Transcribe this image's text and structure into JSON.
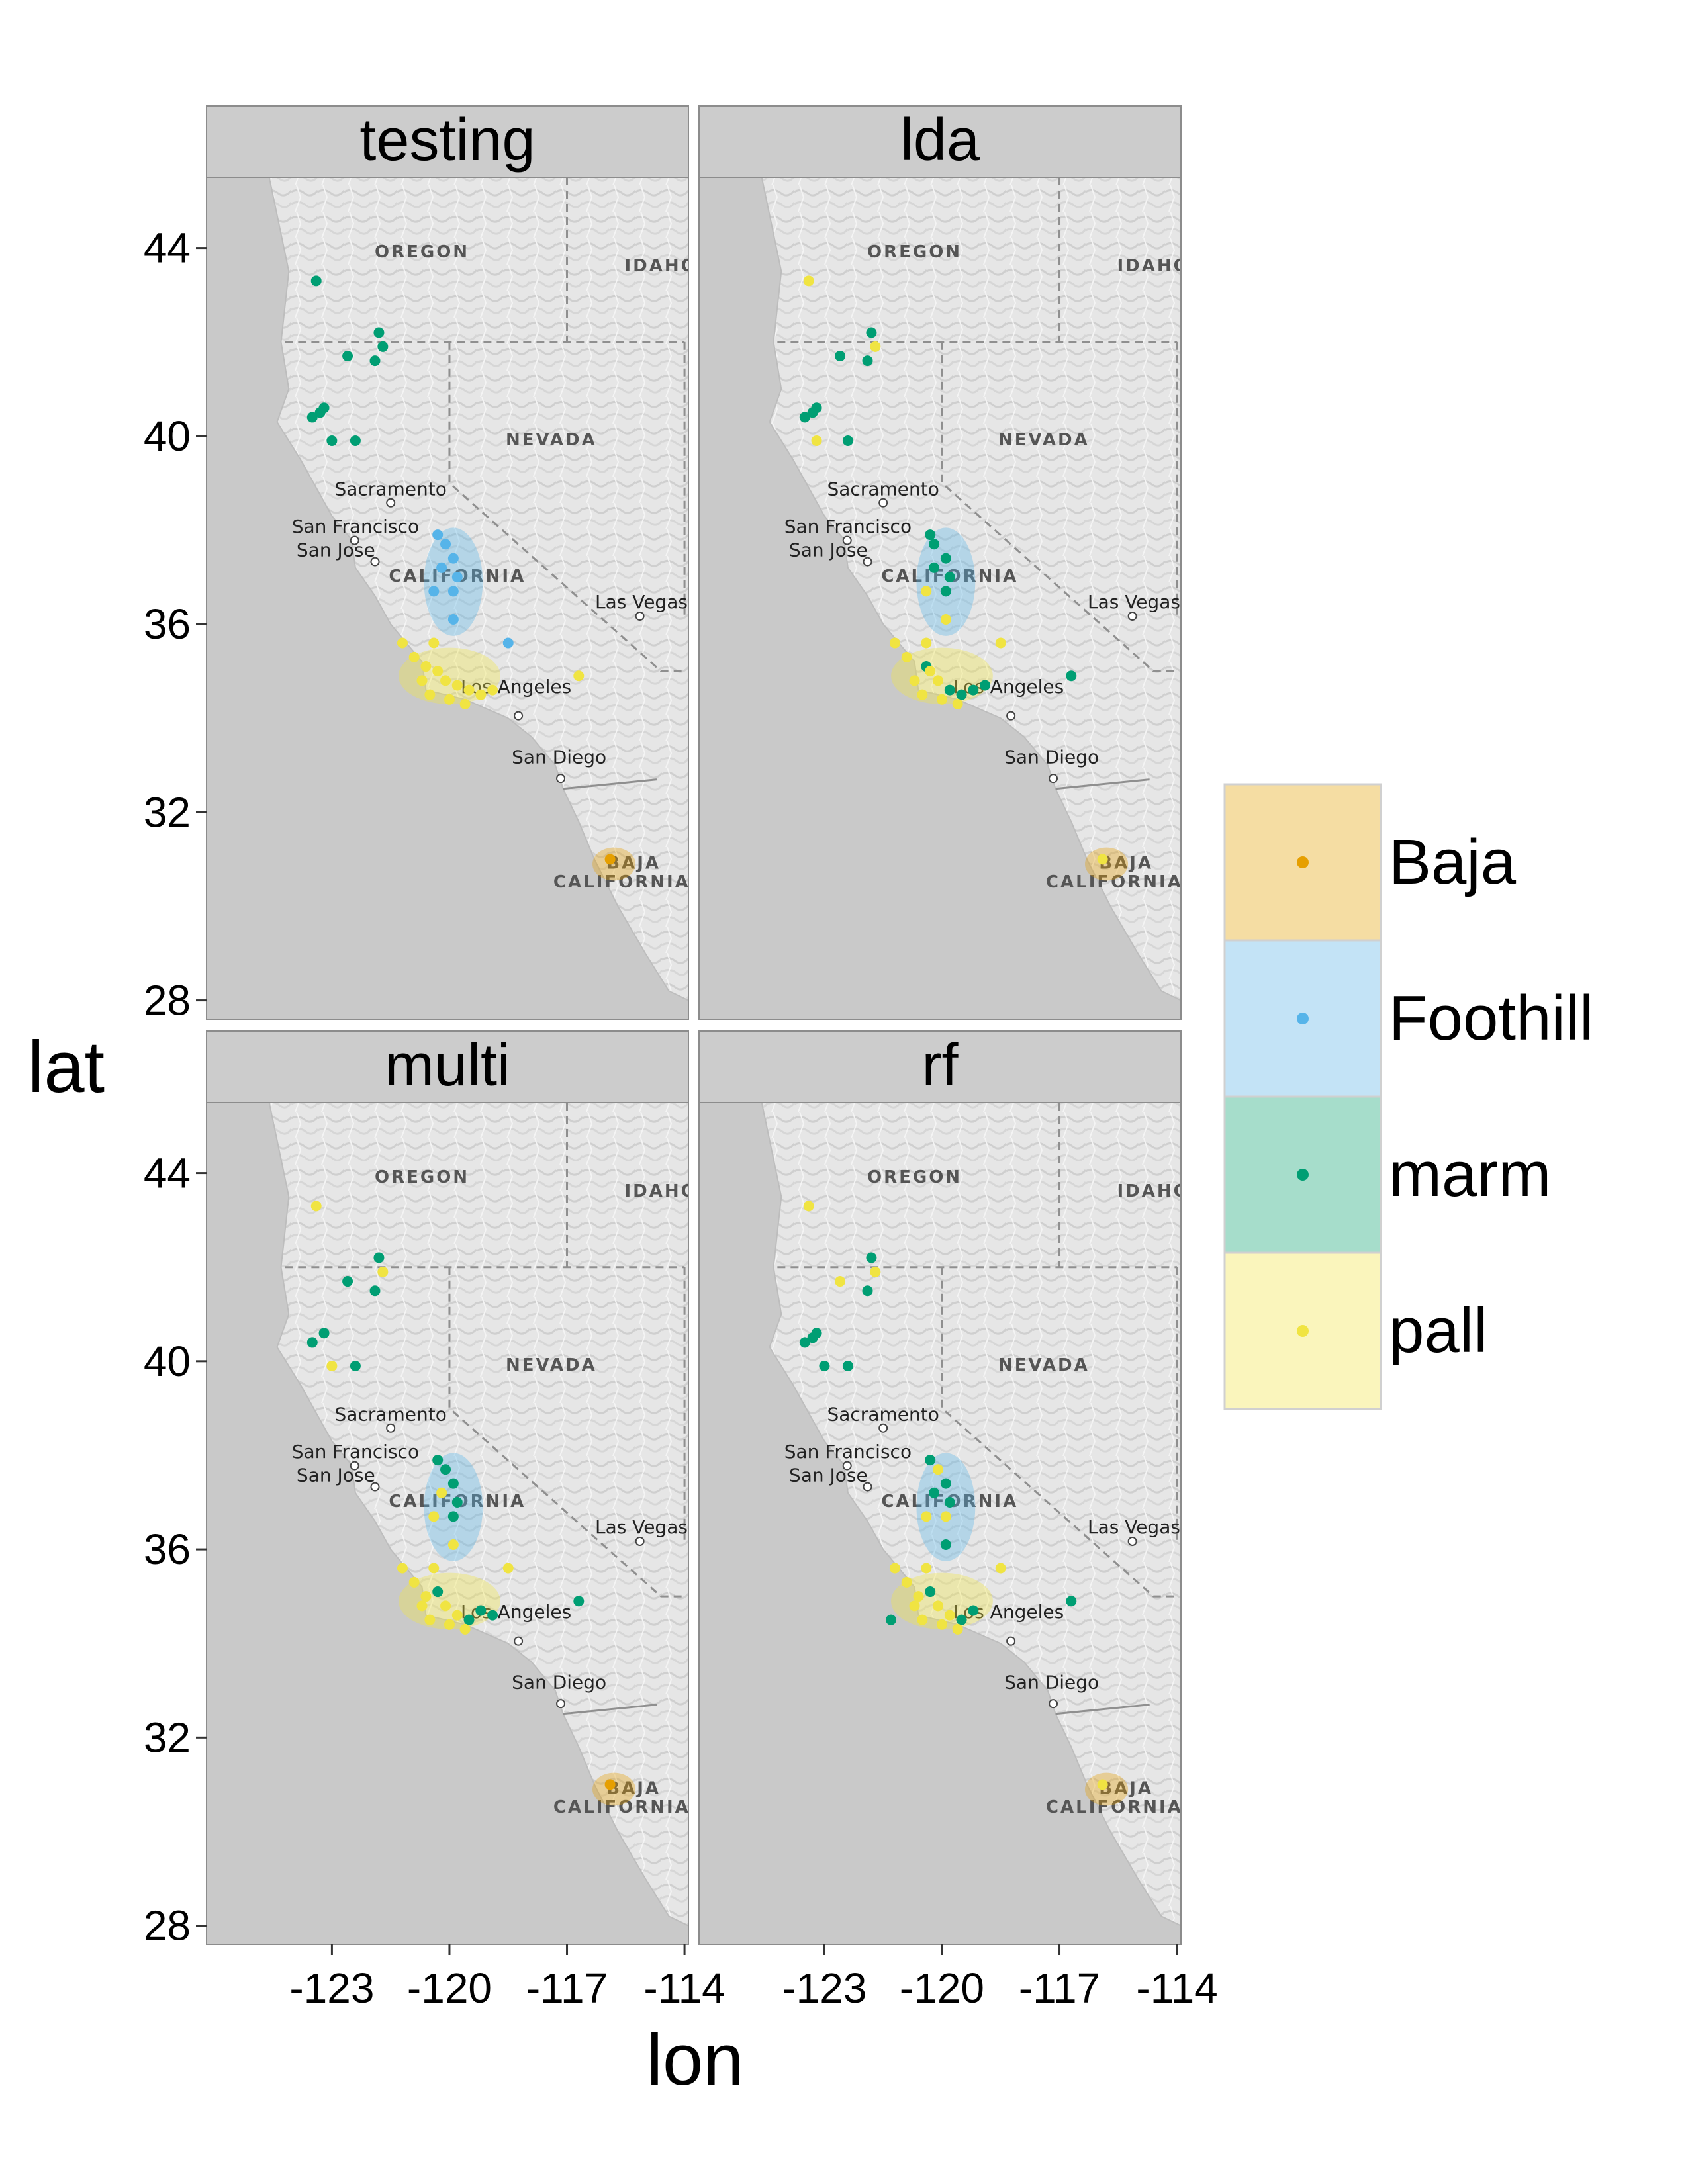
{
  "axes": {
    "xlabel": "lon",
    "ylabel": "lat",
    "x_ticks": [
      -123,
      -120,
      -117,
      -114
    ],
    "y_ticks": [
      28,
      32,
      36,
      40,
      44
    ],
    "xlim": [
      -126.2,
      -113.9
    ],
    "ylim": [
      27.6,
      45.5
    ]
  },
  "map_labels": {
    "states": [
      {
        "name": "OREGON",
        "lon": -120.7,
        "lat": 43.8
      },
      {
        "name": "IDAHO",
        "lon": -114.6,
        "lat": 43.5
      },
      {
        "name": "NEVADA",
        "lon": -117.4,
        "lat": 39.8
      },
      {
        "name": "CALIFORNIA",
        "lon": -119.8,
        "lat": 36.9
      },
      {
        "name": "BAJA",
        "lon": -115.3,
        "lat": 30.8
      },
      {
        "name": "CALIFORNIA",
        "lon": -115.6,
        "lat": 30.4
      }
    ],
    "cities": [
      {
        "name": "Sacramento",
        "lon": -121.5,
        "lat": 38.6,
        "dot_lon": -121.5,
        "dot_lat": 38.58
      },
      {
        "name": "San Francisco",
        "lon": -122.4,
        "lat": 37.8,
        "dot_lon": -122.42,
        "dot_lat": 37.78
      },
      {
        "name": "San Jose",
        "lon": -122.9,
        "lat": 37.3,
        "dot_lon": -121.9,
        "dot_lat": 37.33
      },
      {
        "name": "Las Vegas",
        "lon": -115.1,
        "lat": 36.2,
        "dot_lon": -115.14,
        "dot_lat": 36.17
      },
      {
        "name": "Los Angeles",
        "lon": -118.3,
        "lat": 34.4,
        "dot_lon": -118.24,
        "dot_lat": 34.05
      },
      {
        "name": "San Diego",
        "lon": -117.2,
        "lat": 32.9,
        "dot_lon": -117.16,
        "dot_lat": 32.72
      }
    ]
  },
  "legend": {
    "items": [
      {
        "label": "Baja",
        "color": "#E69F00",
        "fill": "#F5DDA3"
      },
      {
        "label": "Foothill",
        "color": "#56B4E9",
        "fill": "#C3E3F6"
      },
      {
        "label": "marm",
        "color": "#009E73",
        "fill": "#A6DDCB"
      },
      {
        "label": "pall",
        "color": "#F0E442",
        "fill": "#FAF5BC"
      }
    ]
  },
  "chart_data": {
    "type": "scatter",
    "facets": [
      {
        "title": "testing",
        "points": [
          {
            "lon": -123.4,
            "lat": 43.3,
            "group": "marm"
          },
          {
            "lon": -121.8,
            "lat": 42.2,
            "group": "marm"
          },
          {
            "lon": -121.7,
            "lat": 41.9,
            "group": "marm"
          },
          {
            "lon": -122.6,
            "lat": 41.7,
            "group": "marm"
          },
          {
            "lon": -121.9,
            "lat": 41.6,
            "group": "marm"
          },
          {
            "lon": -123.2,
            "lat": 40.6,
            "group": "marm"
          },
          {
            "lon": -123.5,
            "lat": 40.4,
            "group": "marm"
          },
          {
            "lon": -123.3,
            "lat": 40.5,
            "group": "marm"
          },
          {
            "lon": -123.0,
            "lat": 39.9,
            "group": "marm"
          },
          {
            "lon": -122.4,
            "lat": 39.9,
            "group": "marm"
          },
          {
            "lon": -120.3,
            "lat": 37.9,
            "group": "Foothill"
          },
          {
            "lon": -120.1,
            "lat": 37.7,
            "group": "Foothill"
          },
          {
            "lon": -119.9,
            "lat": 37.4,
            "group": "Foothill"
          },
          {
            "lon": -120.2,
            "lat": 37.2,
            "group": "Foothill"
          },
          {
            "lon": -119.8,
            "lat": 37.0,
            "group": "Foothill"
          },
          {
            "lon": -120.4,
            "lat": 36.7,
            "group": "Foothill"
          },
          {
            "lon": -119.9,
            "lat": 36.7,
            "group": "Foothill"
          },
          {
            "lon": -119.9,
            "lat": 36.1,
            "group": "Foothill"
          },
          {
            "lon": -118.5,
            "lat": 35.6,
            "group": "Foothill"
          },
          {
            "lon": -121.2,
            "lat": 35.6,
            "group": "pall"
          },
          {
            "lon": -120.4,
            "lat": 35.6,
            "group": "pall"
          },
          {
            "lon": -120.9,
            "lat": 35.3,
            "group": "pall"
          },
          {
            "lon": -120.6,
            "lat": 35.1,
            "group": "pall"
          },
          {
            "lon": -120.3,
            "lat": 35.0,
            "group": "pall"
          },
          {
            "lon": -120.7,
            "lat": 34.8,
            "group": "pall"
          },
          {
            "lon": -120.1,
            "lat": 34.8,
            "group": "pall"
          },
          {
            "lon": -119.8,
            "lat": 34.7,
            "group": "pall"
          },
          {
            "lon": -119.5,
            "lat": 34.6,
            "group": "pall"
          },
          {
            "lon": -119.2,
            "lat": 34.5,
            "group": "pall"
          },
          {
            "lon": -118.9,
            "lat": 34.6,
            "group": "pall"
          },
          {
            "lon": -120.5,
            "lat": 34.5,
            "group": "pall"
          },
          {
            "lon": -120.0,
            "lat": 34.4,
            "group": "pall"
          },
          {
            "lon": -119.6,
            "lat": 34.3,
            "group": "pall"
          },
          {
            "lon": -116.7,
            "lat": 34.9,
            "group": "pall"
          },
          {
            "lon": -115.9,
            "lat": 31.0,
            "group": "Baja"
          }
        ]
      },
      {
        "title": "lda",
        "points": [
          {
            "lon": -123.4,
            "lat": 43.3,
            "group": "pall"
          },
          {
            "lon": -121.8,
            "lat": 42.2,
            "group": "marm"
          },
          {
            "lon": -121.7,
            "lat": 41.9,
            "group": "pall"
          },
          {
            "lon": -122.6,
            "lat": 41.7,
            "group": "marm"
          },
          {
            "lon": -121.9,
            "lat": 41.6,
            "group": "marm"
          },
          {
            "lon": -123.2,
            "lat": 40.6,
            "group": "marm"
          },
          {
            "lon": -123.5,
            "lat": 40.4,
            "group": "marm"
          },
          {
            "lon": -123.3,
            "lat": 40.5,
            "group": "marm"
          },
          {
            "lon": -123.2,
            "lat": 39.9,
            "group": "pall"
          },
          {
            "lon": -122.4,
            "lat": 39.9,
            "group": "marm"
          },
          {
            "lon": -120.3,
            "lat": 37.9,
            "group": "marm"
          },
          {
            "lon": -120.2,
            "lat": 37.7,
            "group": "marm"
          },
          {
            "lon": -119.9,
            "lat": 37.4,
            "group": "marm"
          },
          {
            "lon": -120.2,
            "lat": 37.2,
            "group": "marm"
          },
          {
            "lon": -119.8,
            "lat": 37.0,
            "group": "marm"
          },
          {
            "lon": -120.4,
            "lat": 36.7,
            "group": "pall"
          },
          {
            "lon": -119.9,
            "lat": 36.7,
            "group": "marm"
          },
          {
            "lon": -119.9,
            "lat": 36.1,
            "group": "pall"
          },
          {
            "lon": -118.5,
            "lat": 35.6,
            "group": "pall"
          },
          {
            "lon": -121.2,
            "lat": 35.6,
            "group": "pall"
          },
          {
            "lon": -120.4,
            "lat": 35.6,
            "group": "pall"
          },
          {
            "lon": -120.9,
            "lat": 35.3,
            "group": "pall"
          },
          {
            "lon": -120.4,
            "lat": 35.1,
            "group": "marm"
          },
          {
            "lon": -120.3,
            "lat": 35.0,
            "group": "pall"
          },
          {
            "lon": -120.7,
            "lat": 34.8,
            "group": "pall"
          },
          {
            "lon": -120.1,
            "lat": 34.8,
            "group": "pall"
          },
          {
            "lon": -119.8,
            "lat": 34.6,
            "group": "marm"
          },
          {
            "lon": -119.5,
            "lat": 34.5,
            "group": "marm"
          },
          {
            "lon": -119.2,
            "lat": 34.6,
            "group": "marm"
          },
          {
            "lon": -118.9,
            "lat": 34.7,
            "group": "marm"
          },
          {
            "lon": -120.5,
            "lat": 34.5,
            "group": "pall"
          },
          {
            "lon": -120.0,
            "lat": 34.4,
            "group": "pall"
          },
          {
            "lon": -119.6,
            "lat": 34.3,
            "group": "pall"
          },
          {
            "lon": -116.7,
            "lat": 34.9,
            "group": "marm"
          },
          {
            "lon": -115.9,
            "lat": 31.0,
            "group": "pall"
          }
        ]
      },
      {
        "title": "multi",
        "points": [
          {
            "lon": -123.4,
            "lat": 43.3,
            "group": "pall"
          },
          {
            "lon": -121.8,
            "lat": 42.2,
            "group": "marm"
          },
          {
            "lon": -121.7,
            "lat": 41.9,
            "group": "pall"
          },
          {
            "lon": -122.6,
            "lat": 41.7,
            "group": "marm"
          },
          {
            "lon": -121.9,
            "lat": 41.5,
            "group": "marm"
          },
          {
            "lon": -123.2,
            "lat": 40.6,
            "group": "marm"
          },
          {
            "lon": -123.5,
            "lat": 40.4,
            "group": "marm"
          },
          {
            "lon": -123.0,
            "lat": 39.9,
            "group": "pall"
          },
          {
            "lon": -122.4,
            "lat": 39.9,
            "group": "marm"
          },
          {
            "lon": -120.3,
            "lat": 37.9,
            "group": "marm"
          },
          {
            "lon": -120.1,
            "lat": 37.7,
            "group": "marm"
          },
          {
            "lon": -119.9,
            "lat": 37.4,
            "group": "marm"
          },
          {
            "lon": -120.2,
            "lat": 37.2,
            "group": "pall"
          },
          {
            "lon": -119.8,
            "lat": 37.0,
            "group": "marm"
          },
          {
            "lon": -120.4,
            "lat": 36.7,
            "group": "pall"
          },
          {
            "lon": -119.9,
            "lat": 36.7,
            "group": "marm"
          },
          {
            "lon": -119.9,
            "lat": 36.1,
            "group": "pall"
          },
          {
            "lon": -118.5,
            "lat": 35.6,
            "group": "pall"
          },
          {
            "lon": -121.2,
            "lat": 35.6,
            "group": "pall"
          },
          {
            "lon": -120.4,
            "lat": 35.6,
            "group": "pall"
          },
          {
            "lon": -120.9,
            "lat": 35.3,
            "group": "pall"
          },
          {
            "lon": -120.3,
            "lat": 35.1,
            "group": "marm"
          },
          {
            "lon": -120.6,
            "lat": 35.0,
            "group": "pall"
          },
          {
            "lon": -120.7,
            "lat": 34.8,
            "group": "pall"
          },
          {
            "lon": -120.1,
            "lat": 34.8,
            "group": "pall"
          },
          {
            "lon": -119.8,
            "lat": 34.6,
            "group": "pall"
          },
          {
            "lon": -119.5,
            "lat": 34.5,
            "group": "marm"
          },
          {
            "lon": -119.2,
            "lat": 34.7,
            "group": "marm"
          },
          {
            "lon": -118.9,
            "lat": 34.6,
            "group": "marm"
          },
          {
            "lon": -120.5,
            "lat": 34.5,
            "group": "pall"
          },
          {
            "lon": -120.0,
            "lat": 34.4,
            "group": "pall"
          },
          {
            "lon": -119.6,
            "lat": 34.3,
            "group": "pall"
          },
          {
            "lon": -116.7,
            "lat": 34.9,
            "group": "marm"
          },
          {
            "lon": -115.9,
            "lat": 31.0,
            "group": "Baja"
          }
        ]
      },
      {
        "title": "rf",
        "points": [
          {
            "lon": -123.4,
            "lat": 43.3,
            "group": "pall"
          },
          {
            "lon": -121.8,
            "lat": 42.2,
            "group": "marm"
          },
          {
            "lon": -121.7,
            "lat": 41.9,
            "group": "pall"
          },
          {
            "lon": -122.6,
            "lat": 41.7,
            "group": "pall"
          },
          {
            "lon": -121.9,
            "lat": 41.5,
            "group": "marm"
          },
          {
            "lon": -123.2,
            "lat": 40.6,
            "group": "marm"
          },
          {
            "lon": -123.5,
            "lat": 40.4,
            "group": "marm"
          },
          {
            "lon": -123.3,
            "lat": 40.5,
            "group": "marm"
          },
          {
            "lon": -123.0,
            "lat": 39.9,
            "group": "marm"
          },
          {
            "lon": -122.4,
            "lat": 39.9,
            "group": "marm"
          },
          {
            "lon": -120.3,
            "lat": 37.9,
            "group": "marm"
          },
          {
            "lon": -120.1,
            "lat": 37.7,
            "group": "pall"
          },
          {
            "lon": -119.9,
            "lat": 37.4,
            "group": "marm"
          },
          {
            "lon": -120.2,
            "lat": 37.2,
            "group": "marm"
          },
          {
            "lon": -119.8,
            "lat": 37.0,
            "group": "marm"
          },
          {
            "lon": -120.4,
            "lat": 36.7,
            "group": "pall"
          },
          {
            "lon": -119.9,
            "lat": 36.7,
            "group": "pall"
          },
          {
            "lon": -119.9,
            "lat": 36.1,
            "group": "marm"
          },
          {
            "lon": -118.5,
            "lat": 35.6,
            "group": "pall"
          },
          {
            "lon": -121.2,
            "lat": 35.6,
            "group": "pall"
          },
          {
            "lon": -120.4,
            "lat": 35.6,
            "group": "pall"
          },
          {
            "lon": -120.9,
            "lat": 35.3,
            "group": "pall"
          },
          {
            "lon": -120.3,
            "lat": 35.1,
            "group": "marm"
          },
          {
            "lon": -120.6,
            "lat": 35.0,
            "group": "pall"
          },
          {
            "lon": -120.7,
            "lat": 34.8,
            "group": "pall"
          },
          {
            "lon": -120.1,
            "lat": 34.8,
            "group": "pall"
          },
          {
            "lon": -119.8,
            "lat": 34.6,
            "group": "pall"
          },
          {
            "lon": -119.5,
            "lat": 34.5,
            "group": "marm"
          },
          {
            "lon": -119.2,
            "lat": 34.7,
            "group": "marm"
          },
          {
            "lon": -121.3,
            "lat": 34.5,
            "group": "marm"
          },
          {
            "lon": -120.5,
            "lat": 34.5,
            "group": "pall"
          },
          {
            "lon": -120.0,
            "lat": 34.4,
            "group": "pall"
          },
          {
            "lon": -119.6,
            "lat": 34.3,
            "group": "pall"
          },
          {
            "lon": -116.7,
            "lat": 34.9,
            "group": "marm"
          },
          {
            "lon": -115.9,
            "lat": 31.0,
            "group": "pall"
          }
        ]
      }
    ],
    "regions": [
      {
        "group": "Foothill",
        "lon": -119.9,
        "lat": 36.9,
        "rlon": 0.75,
        "rlat": 1.15
      },
      {
        "group": "pall",
        "lon": -120.0,
        "lat": 34.9,
        "rlon": 1.3,
        "rlat": 0.6
      },
      {
        "group": "Baja",
        "lon": -115.8,
        "lat": 30.9,
        "rlon": 0.55,
        "rlat": 0.35
      }
    ],
    "borders": {
      "or_ca_lat": 42.0,
      "nv_west_lon": -120.0,
      "nv_east_lon": -114.0,
      "or_id_lon": -117.0,
      "nv_sw_corner": [
        -114.6,
        35.0
      ],
      "mexico_border": [
        [
          -117.1,
          32.5
        ],
        [
          -114.7,
          32.7
        ]
      ]
    }
  }
}
